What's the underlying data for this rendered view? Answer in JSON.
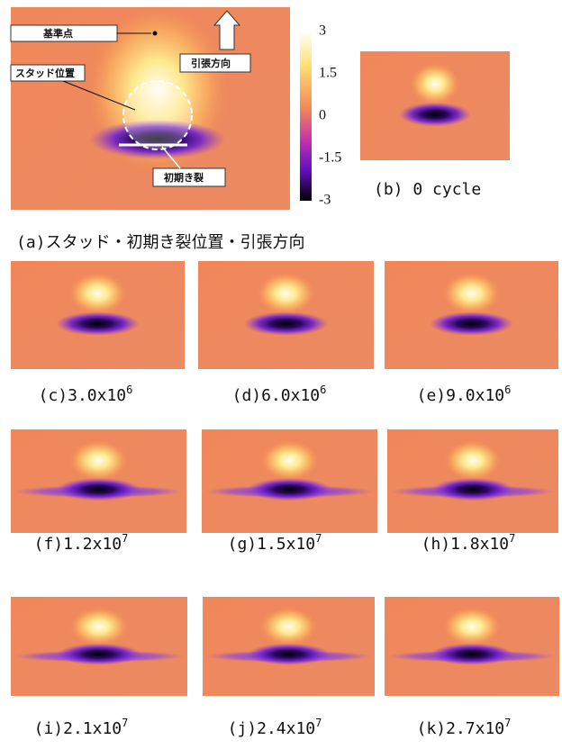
{
  "panel_a": {
    "annotations": {
      "reference_point": "基準点",
      "stud_position": "スタッド位置",
      "tension_direction": "引張方向",
      "initial_crack": "初期き裂"
    },
    "caption": "(a)スタッド・初期き裂位置・引張方向"
  },
  "colorbar": {
    "ticks": [
      3,
      1.5,
      0,
      -1.5,
      -3
    ]
  },
  "panel_b": {
    "caption": "(b) 0 cycle"
  },
  "panels": [
    {
      "label": "(c)3.0x10",
      "sup": "6"
    },
    {
      "label": "(d)6.0x10",
      "sup": "6"
    },
    {
      "label": "(e)9.0x10",
      "sup": "6"
    },
    {
      "label": "(f)1.2x10",
      "sup": "7"
    },
    {
      "label": "(g)1.5x10",
      "sup": "7"
    },
    {
      "label": "(h)1.8x10",
      "sup": "7"
    },
    {
      "label": "(i)2.1x10",
      "sup": "7"
    },
    {
      "label": "(j)2.4x10",
      "sup": "7"
    },
    {
      "label": "(k)2.7x10",
      "sup": "7"
    }
  ]
}
